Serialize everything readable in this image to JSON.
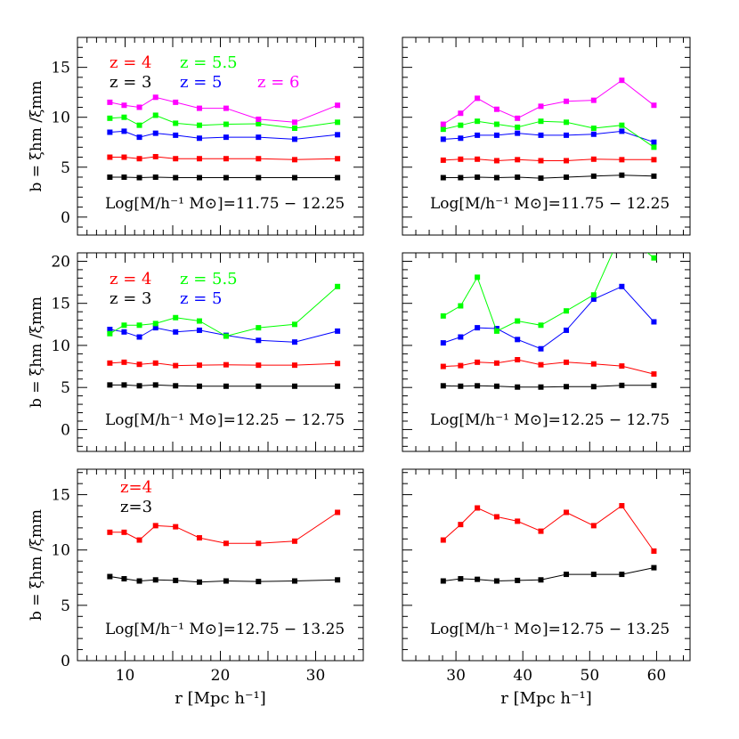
{
  "colors": {
    "z3": "#000000",
    "z4": "#ff0000",
    "z5": "#0000ff",
    "z55": "#00ff00",
    "z6": "#ff00ff",
    "frame": "#000000",
    "background": "#ffffff"
  },
  "x_tick_label_decimals": 0,
  "chart_data": [
    {
      "type": "line",
      "panel": "top-left",
      "xlim": [
        5,
        35
      ],
      "ylim": [
        -1.8,
        18
      ],
      "yticks": [
        0,
        5,
        10,
        15
      ],
      "xticks": [],
      "ylabel": "b = ξhm /ξmm",
      "xlabel": "",
      "mass_label": "Log[M/h⁻¹ M⊙]=11.75 − 12.25",
      "legend": [
        "z = 4",
        "z = 5.5",
        "z = 3",
        "z = 5",
        "z = 6"
      ],
      "legend_placement": "top-left",
      "x": [
        8.4,
        9.9,
        11.5,
        13.2,
        15.3,
        17.8,
        20.6,
        24.0,
        27.8,
        32.3
      ],
      "series": [
        {
          "key": "z3",
          "values": [
            4.0,
            4.0,
            3.95,
            4.0,
            3.95,
            3.95,
            3.95,
            3.95,
            3.95,
            3.95
          ]
        },
        {
          "key": "z4",
          "values": [
            6.0,
            6.0,
            5.85,
            6.05,
            5.85,
            5.85,
            5.85,
            5.85,
            5.75,
            5.85
          ]
        },
        {
          "key": "z5",
          "values": [
            8.5,
            8.6,
            8.0,
            8.4,
            8.2,
            7.9,
            8.0,
            8.0,
            7.8,
            8.25
          ]
        },
        {
          "key": "z55",
          "values": [
            9.9,
            10.0,
            9.2,
            10.2,
            9.4,
            9.2,
            9.3,
            9.35,
            8.9,
            9.5
          ]
        },
        {
          "key": "z6",
          "values": [
            11.5,
            11.2,
            11.0,
            12.0,
            11.5,
            10.9,
            10.9,
            9.8,
            9.5,
            11.2
          ]
        }
      ]
    },
    {
      "type": "line",
      "panel": "top-right",
      "xlim": [
        22,
        65
      ],
      "ylim": [
        -1.8,
        18
      ],
      "yticks": [],
      "xticks": [],
      "ylabel": "",
      "xlabel": "",
      "mass_label": "Log[M/h⁻¹ M⊙]=11.75 − 12.25",
      "legend": [],
      "x": [
        28.1,
        30.7,
        33.2,
        36.1,
        39.2,
        42.7,
        46.5,
        50.6,
        54.8,
        59.6
      ],
      "series": [
        {
          "key": "z3",
          "values": [
            3.95,
            3.95,
            4.0,
            3.95,
            4.0,
            3.9,
            4.0,
            4.1,
            4.2,
            4.1
          ]
        },
        {
          "key": "z4",
          "values": [
            5.7,
            5.8,
            5.8,
            5.65,
            5.75,
            5.65,
            5.65,
            5.8,
            5.75,
            5.75
          ]
        },
        {
          "key": "z5",
          "values": [
            7.8,
            7.9,
            8.2,
            8.2,
            8.4,
            8.2,
            8.2,
            8.3,
            8.6,
            7.5
          ]
        },
        {
          "key": "z55",
          "values": [
            8.8,
            9.2,
            9.6,
            9.3,
            9.0,
            9.6,
            9.5,
            8.9,
            9.2,
            7.0
          ]
        },
        {
          "key": "z6",
          "values": [
            9.3,
            10.4,
            11.9,
            10.8,
            9.9,
            11.1,
            11.6,
            11.7,
            13.7,
            11.2
          ]
        }
      ]
    },
    {
      "type": "line",
      "panel": "middle-left",
      "xlim": [
        5,
        35
      ],
      "ylim": [
        -2.6,
        21
      ],
      "yticks": [
        0,
        5,
        10,
        15,
        20
      ],
      "xticks": [],
      "ylabel": "b = ξhm /ξmm",
      "xlabel": "",
      "mass_label": "Log[M/h⁻¹ M⊙]=12.25 − 12.75",
      "legend": [
        "z = 4",
        "z = 5.5",
        "z = 3",
        "z = 5"
      ],
      "legend_placement": "top-left",
      "x": [
        8.4,
        9.9,
        11.5,
        13.2,
        15.3,
        17.8,
        20.6,
        24.0,
        27.8,
        32.3
      ],
      "series": [
        {
          "key": "z3",
          "values": [
            5.3,
            5.3,
            5.2,
            5.3,
            5.2,
            5.15,
            5.15,
            5.15,
            5.15,
            5.15
          ]
        },
        {
          "key": "z4",
          "values": [
            7.9,
            8.0,
            7.75,
            7.9,
            7.6,
            7.65,
            7.7,
            7.65,
            7.65,
            7.85
          ]
        },
        {
          "key": "z5",
          "values": [
            11.9,
            11.6,
            11.0,
            12.1,
            11.6,
            11.8,
            11.2,
            10.6,
            10.4,
            11.7
          ]
        },
        {
          "key": "z55",
          "values": [
            11.4,
            12.4,
            12.4,
            12.6,
            13.3,
            12.9,
            11.1,
            12.1,
            12.5,
            17.0
          ]
        }
      ]
    },
    {
      "type": "line",
      "panel": "middle-right",
      "xlim": [
        22,
        65
      ],
      "ylim": [
        -2.6,
        21
      ],
      "yticks": [],
      "xticks": [],
      "ylabel": "",
      "xlabel": "",
      "mass_label": "Log[M/h⁻¹ M⊙]=12.25 − 12.75",
      "legend": [],
      "x": [
        28.1,
        30.7,
        33.2,
        36.1,
        39.2,
        42.7,
        46.5,
        50.6,
        54.8,
        59.6
      ],
      "series": [
        {
          "key": "z3",
          "values": [
            5.2,
            5.15,
            5.2,
            5.15,
            5.05,
            5.05,
            5.1,
            5.1,
            5.25,
            5.25
          ]
        },
        {
          "key": "z4",
          "values": [
            7.5,
            7.6,
            8.0,
            7.9,
            8.3,
            7.7,
            8.0,
            7.8,
            7.55,
            6.6
          ]
        },
        {
          "key": "z5",
          "values": [
            10.3,
            11.0,
            12.1,
            12.0,
            10.7,
            9.6,
            11.8,
            15.5,
            17.0,
            12.8
          ]
        },
        {
          "key": "z55",
          "values": [
            13.5,
            14.7,
            18.1,
            11.7,
            12.9,
            12.4,
            14.1,
            16.0,
            23.5,
            20.4
          ]
        }
      ]
    },
    {
      "type": "line",
      "panel": "bottom-left",
      "xlim": [
        5,
        35
      ],
      "ylim": [
        0,
        17.3
      ],
      "yticks": [
        0,
        5,
        10,
        15
      ],
      "xticks": [
        10,
        20,
        30
      ],
      "ylabel": "b = ξhm /ξmm",
      "xlabel": "r [Mpc h⁻¹]",
      "mass_label": "Log[M/h⁻¹ M⊙]=12.75 − 13.25",
      "legend": [
        "z=4",
        "z=3"
      ],
      "legend_placement": "top-left",
      "x": [
        8.4,
        9.9,
        11.5,
        13.2,
        15.3,
        17.8,
        20.6,
        24.0,
        27.8,
        32.3
      ],
      "series": [
        {
          "key": "z3",
          "values": [
            7.6,
            7.4,
            7.2,
            7.3,
            7.25,
            7.1,
            7.2,
            7.15,
            7.2,
            7.3
          ]
        },
        {
          "key": "z4",
          "values": [
            11.6,
            11.6,
            10.9,
            12.2,
            12.1,
            11.1,
            10.6,
            10.6,
            10.8,
            13.4
          ]
        }
      ]
    },
    {
      "type": "line",
      "panel": "bottom-right",
      "xlim": [
        22,
        65
      ],
      "ylim": [
        0,
        17.3
      ],
      "yticks": [],
      "xticks": [
        30,
        40,
        50,
        60
      ],
      "ylabel": "",
      "xlabel": "r [Mpc h⁻¹]",
      "mass_label": "Log[M/h⁻¹ M⊙]=12.75 − 13.25",
      "legend": [],
      "x": [
        28.1,
        30.7,
        33.2,
        36.1,
        39.2,
        42.7,
        46.5,
        50.6,
        54.8,
        59.6
      ],
      "series": [
        {
          "key": "z3",
          "values": [
            7.2,
            7.4,
            7.35,
            7.2,
            7.25,
            7.3,
            7.8,
            7.8,
            7.8,
            8.4
          ]
        },
        {
          "key": "z4",
          "values": [
            10.9,
            12.3,
            13.8,
            13.0,
            12.6,
            11.7,
            13.4,
            12.2,
            14.0,
            9.9
          ]
        }
      ]
    }
  ]
}
